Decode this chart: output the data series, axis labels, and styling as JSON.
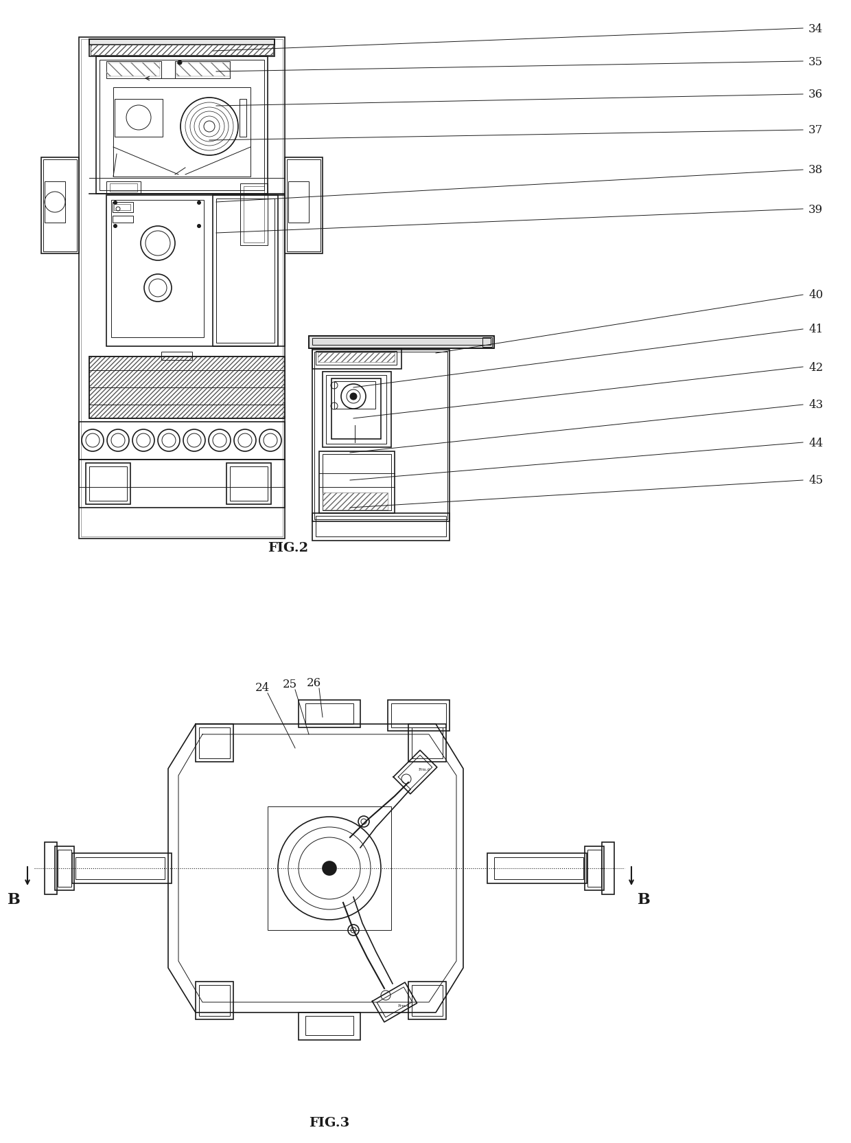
{
  "fig2_label": "FIG.2",
  "fig3_label": "FIG.3",
  "bg_color": "#ffffff",
  "lc": "#1a1a1a",
  "fig2_leaders": [
    [
      310,
      75,
      1170,
      42,
      "34"
    ],
    [
      315,
      105,
      1170,
      90,
      "35"
    ],
    [
      315,
      155,
      1170,
      138,
      "36"
    ],
    [
      305,
      205,
      1170,
      190,
      "37"
    ],
    [
      315,
      295,
      1170,
      248,
      "38"
    ],
    [
      315,
      340,
      1170,
      305,
      "39"
    ],
    [
      635,
      515,
      1170,
      430,
      "40"
    ],
    [
      515,
      565,
      1170,
      480,
      "41"
    ],
    [
      515,
      610,
      1170,
      535,
      "42"
    ],
    [
      510,
      660,
      1170,
      590,
      "43"
    ],
    [
      510,
      700,
      1170,
      645,
      "44"
    ],
    [
      510,
      740,
      1170,
      700,
      "45"
    ]
  ],
  "fig3_leaders": [
    [
      430,
      1090,
      390,
      1010,
      "24"
    ],
    [
      450,
      1070,
      430,
      1005,
      "25"
    ],
    [
      470,
      1045,
      465,
      1003,
      "26"
    ]
  ]
}
